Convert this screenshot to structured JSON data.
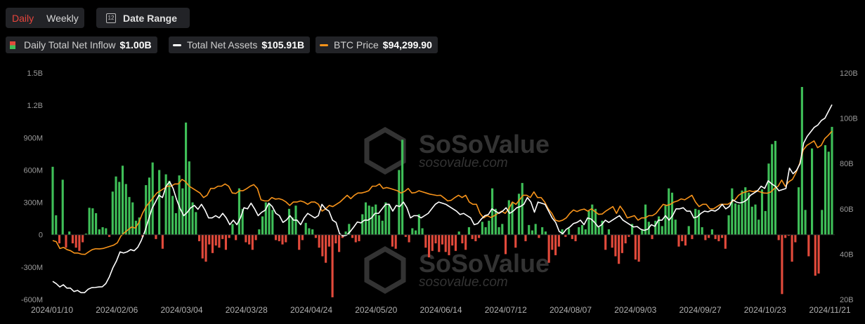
{
  "controls": {
    "daily_label": "Daily",
    "weekly_label": "Weekly",
    "date_range_label": "Date Range",
    "calendar_glyph": "12"
  },
  "legend": {
    "inflow_label": "Daily Total Net Inflow",
    "inflow_value": "$1.00B",
    "assets_label": "Total Net Assets",
    "assets_value": "$105.91B",
    "btc_label": "BTC Price",
    "btc_value": "$94,299.90"
  },
  "watermark": {
    "brand": "SoSoValue",
    "site": "sosovalue.com"
  },
  "colors": {
    "inflow_positive": "#3fbf58",
    "inflow_negative": "#e24a3b",
    "assets_line": "#ffffff",
    "btc_line": "#f7931a",
    "background": "#000000",
    "grid": "#1c1c1c"
  },
  "chart_data": {
    "type": "bar",
    "title": "",
    "left_axis": {
      "ticks": [
        "1.5B",
        "1.2B",
        "900M",
        "600M",
        "300M",
        "0",
        "-300M",
        "-600M"
      ],
      "range_millions": [
        -600,
        1500
      ]
    },
    "right_axis": {
      "ticks": [
        "120B",
        "100B",
        "80B",
        "60B",
        "40B",
        "20B"
      ],
      "range_billions": [
        20,
        120
      ]
    },
    "x_tick_labels": [
      "2024/01/10",
      "2024/02/06",
      "2024/03/04",
      "2024/03/28",
      "2024/04/24",
      "2024/05/20",
      "2024/06/14",
      "2024/07/12",
      "2024/08/07",
      "2024/09/03",
      "2024/09/27",
      "2024/10/23",
      "2024/11/21"
    ],
    "grid": false,
    "series": [
      {
        "name": "Daily Total Net Inflow",
        "type": "bar",
        "unit": "M USD",
        "values": [
          630,
          180,
          -80,
          510,
          -120,
          30,
          -80,
          -120,
          -150,
          -70,
          10,
          250,
          245,
          200,
          50,
          70,
          60,
          -20,
          400,
          540,
          490,
          640,
          470,
          350,
          300,
          130,
          160,
          -20,
          460,
          530,
          670,
          -40,
          600,
          -130,
          560,
          500,
          360,
          200,
          550,
          430,
          1040,
          680,
          300,
          210,
          -60,
          -220,
          -250,
          -90,
          -170,
          -100,
          -120,
          -40,
          -140,
          -30,
          100,
          -50,
          430,
          240,
          -70,
          -90,
          -140,
          -50,
          50,
          170,
          300,
          290,
          230,
          -50,
          -60,
          -90,
          -70,
          240,
          160,
          270,
          -140,
          -50,
          110,
          60,
          50,
          -30,
          -120,
          -200,
          -260,
          -110,
          -580,
          -80,
          -160,
          -30,
          30,
          100,
          -30,
          -70,
          -60,
          190,
          300,
          270,
          260,
          280,
          180,
          130,
          300,
          280,
          -110,
          -130,
          600,
          880,
          -20,
          -70,
          60,
          40,
          190,
          60,
          -120,
          -210,
          -150,
          -80,
          -160,
          -90,
          -160,
          -190,
          -100,
          -150,
          30,
          -80,
          -140,
          70,
          -40,
          -60,
          -30,
          120,
          70,
          130,
          430,
          240,
          70,
          100,
          -180,
          320,
          300,
          -120,
          380,
          480,
          -60,
          90,
          40,
          100,
          -30,
          70,
          30,
          -260,
          -140,
          -190,
          -110,
          50,
          -20,
          60,
          -40,
          -60,
          70,
          90,
          50,
          220,
          280,
          240,
          70,
          130,
          -140,
          50,
          -120,
          -200,
          -270,
          -170,
          -80,
          -20,
          100,
          -230,
          -250,
          50,
          280,
          120,
          -40,
          130,
          170,
          80,
          270,
          430,
          390,
          140,
          -110,
          -60,
          -100,
          80,
          -40,
          240,
          230,
          70,
          -50,
          -30,
          50,
          -40,
          -60,
          -30,
          -130,
          180,
          430,
          290,
          280,
          410,
          440,
          390,
          260,
          280,
          140,
          420,
          220,
          660,
          840,
          870,
          -50,
          -550,
          -30,
          -10,
          -250,
          -70,
          440,
          1370,
          230,
          -200,
          800,
          -380,
          -360,
          230,
          830,
          770,
          1000
        ]
      },
      {
        "name": "Total Net Assets",
        "type": "line",
        "unit": "B USD",
        "values": [
          28,
          27,
          25.5,
          26.5,
          25,
          25,
          23.5,
          24,
          23,
          23,
          24.5,
          25.2,
          25.3,
          25.5,
          25.6,
          27,
          30,
          34,
          37,
          41,
          40.5,
          41,
          42,
          41.5,
          43,
          46,
          50,
          55,
          60,
          63,
          66,
          65,
          70,
          72,
          69,
          64,
          60,
          57,
          58.5,
          60.5,
          61.5,
          59.8,
          62,
          59.5,
          56,
          56,
          57,
          56,
          58,
          56,
          53,
          55,
          53,
          56,
          60.5,
          60,
          62.5,
          60,
          57,
          58.5,
          59.4,
          62.5,
          61,
          58,
          57,
          54,
          55.1,
          57,
          55,
          55,
          53,
          56,
          58,
          57,
          56,
          57,
          62,
          60,
          59,
          55,
          54,
          49,
          48,
          48.4,
          50,
          52,
          54.2,
          53.8,
          55,
          55,
          56,
          58,
          58,
          60,
          62,
          62,
          59,
          61.5,
          61,
          63,
          60.5,
          56,
          57,
          57,
          56,
          57,
          58,
          60,
          62,
          63,
          62.5,
          62,
          61,
          60,
          59,
          57.5,
          58,
          57,
          56,
          53,
          53.5,
          55.5,
          57,
          57.5,
          60,
          59,
          58,
          59,
          60.5,
          58,
          59,
          60.5,
          61,
          62,
          65,
          63,
          58.5,
          63,
          62.5,
          62,
          59,
          56,
          54,
          50,
          49,
          51,
          52,
          53.5,
          54,
          55,
          53,
          56,
          55.5,
          54,
          52,
          53,
          55,
          54,
          55,
          56,
          57,
          55,
          54,
          53,
          52,
          52.2,
          51,
          50.5,
          51,
          53,
          52.3,
          55,
          55,
          57,
          55,
          57,
          60,
          60,
          60.5,
          59,
          59,
          56,
          56.5,
          58,
          59,
          58.7,
          59.4,
          59,
          60,
          62,
          60,
          61,
          64,
          63,
          62.6,
          63,
          64,
          66,
          67,
          68,
          70,
          69,
          72.4,
          71,
          70,
          68,
          68.5,
          69,
          78,
          75.5,
          77,
          80,
          89,
          92,
          94,
          96,
          97,
          99,
          100,
          103,
          106
        ]
      },
      {
        "name": "BTC Price",
        "type": "line",
        "unit": "K USD",
        "values": [
          46,
          45.5,
          42.5,
          43,
          42,
          41.5,
          40.5,
          40.5,
          40,
          39.9,
          41,
          42,
          42.4,
          42.3,
          42.5,
          43,
          43.5,
          44,
          45,
          48,
          49.5,
          50.8,
          52,
          51.5,
          54,
          58,
          61,
          63,
          65,
          67,
          68,
          69,
          70,
          70,
          71,
          71,
          73,
          72,
          70,
          69,
          68,
          67,
          65,
          66,
          69,
          69,
          70,
          70,
          71,
          70,
          67,
          66.8,
          68,
          68,
          68.9,
          70,
          70.7,
          69,
          64,
          63.5,
          63.5,
          65,
          64.3,
          64.5,
          64,
          63,
          61.5,
          63,
          63,
          63.5,
          63,
          62,
          63,
          63,
          62,
          59,
          60,
          61.5,
          61,
          62,
          63,
          64.5,
          66,
          64.5,
          66,
          67,
          67,
          67.4,
          68,
          70,
          70,
          71,
          69,
          69.4,
          69,
          68.5,
          68,
          67,
          67.7,
          69,
          67,
          67.2,
          68,
          67.5,
          67,
          66.5,
          66.2,
          65.9,
          66,
          64.8,
          63.5,
          63.8,
          65,
          66,
          65,
          66,
          63,
          62,
          62,
          58,
          56,
          57,
          56.2,
          57,
          58,
          59,
          58,
          60,
          63,
          62,
          64,
          66,
          66,
          65,
          67.5,
          65,
          65,
          63,
          60,
          58,
          55,
          54.5,
          55,
          56,
          58,
          59.5,
          58.8,
          59.5,
          59.9,
          59,
          60,
          58.8,
          57.6,
          57.7,
          59,
          60,
          61,
          58,
          61.2,
          59,
          56,
          56.5,
          57,
          55,
          56,
          56,
          57,
          57,
          58,
          60,
          62,
          61.5,
          62,
          63,
          63.5,
          64.4,
          64,
          65,
          66,
          63,
          61,
          62,
          62,
          60,
          60,
          61,
          62,
          62,
          62,
          63,
          64,
          66,
          67,
          67.5,
          68,
          67.6,
          68,
          67.5,
          67,
          66.9,
          67.5,
          69,
          70,
          72.7,
          69.9,
          72,
          73,
          76,
          80,
          86,
          88,
          89,
          90,
          87,
          88,
          91,
          92.5,
          94.3
        ]
      }
    ]
  }
}
